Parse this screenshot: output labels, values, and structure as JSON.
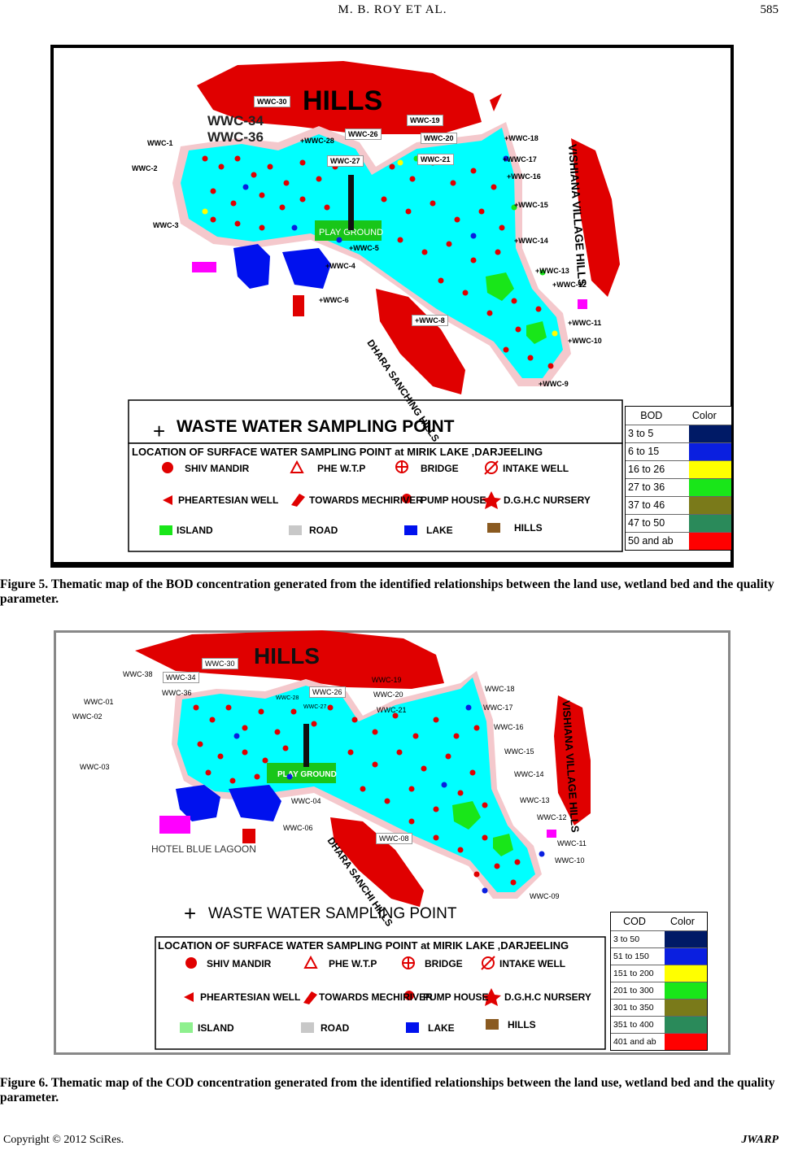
{
  "header": {
    "authors": "M. B. ROY   ET   AL.",
    "page": "585"
  },
  "figure5": {
    "labels": {
      "hills": "HILLS",
      "village": "VISHIANA VILLAGE HILLS",
      "dhara": "DHARA SANCHING HILLS",
      "playground": "PLAY GROUND",
      "wwc34": "WWC-34",
      "wwc36": "WWC-36",
      "wwc30": "WWC-30",
      "wwc19": "WWC-19",
      "wwc26": "WWC-26",
      "wwc20": "WWC-20",
      "wwc27": "WWC-27",
      "wwc21": "WWC-21",
      "wwc28": "+WWC-28",
      "wwc1": "WWC-1",
      "wwc2": "WWC-2",
      "wwc3": "WWC-3",
      "wwc18": "+WWC-18",
      "wwc17": "+WWC-17",
      "wwc16": "+WWC-16",
      "wwc15": "+WWC-15",
      "wwc14": "+WWC-14",
      "wwc13": "+WWC-13",
      "wwc12": "+WWC-12",
      "wwc11": "+WWC-11",
      "wwc10": "+WWC-10",
      "wwc9": "+WWC-9",
      "wwc8": "+WWC-8",
      "wwc6": "+WWC-6",
      "wwc5": "+WWC-5",
      "wwc4": "+WWC-4"
    },
    "waste_water_title": "WASTE WATER SAMPLING POINT",
    "location_title": "LOCATION OF SURFACE WATER SAMPLING POINT at MIRIK LAKE ,DARJEELING",
    "symbols": [
      "SHIV MANDIR",
      "PHE W.T.P",
      "BRIDGE",
      "INTAKE WELL",
      "PHEARTESIAN WELL",
      "TOWARDS MECHIRIVER",
      "PUMP HOUSE",
      "D.G.H.C NURSERY",
      "ISLAND",
      "ROAD",
      "LAKE",
      "HILLS"
    ],
    "legend": {
      "param": "BOD",
      "color_header": "Color",
      "rows": [
        {
          "label": "3 to 5",
          "color": "#001a66"
        },
        {
          "label": "6 to 15",
          "color": "#0a1fe0"
        },
        {
          "label": "16 to 26",
          "color": "#ffff00"
        },
        {
          "label": "27 to 36",
          "color": "#19e619"
        },
        {
          "label": "37 to 46",
          "color": "#7a7a1a"
        },
        {
          "label": "47 to 50",
          "color": "#2a8a5a"
        },
        {
          "label": "50 and ab",
          "color": "#ff0000"
        }
      ]
    },
    "caption": "Figure 5. Thematic map of the BOD concentration generated from the identified relationships between the land use, wetland bed and the quality parameter."
  },
  "figure6": {
    "labels": {
      "hills": "HILLS",
      "village": "VISHIANA VILLAGE HILLS",
      "dhara": "DHARA SANCHI HILLS",
      "playground": "PLAY GROUND",
      "hotel": "HOTEL BLUE LAGOON",
      "wwc38": "WWC-38",
      "wwc34": "WWC-34",
      "wwc30": "WWC-30",
      "wwc36": "WWC-36",
      "wwc28": "WWC-28",
      "wwc26": "WWC-26",
      "wwc27": "WWC-27",
      "wwc19": "WWC-19",
      "wwc20": "WWC-20",
      "wwc21": "WWC-21",
      "wwc18": "WWC-18",
      "wwc17": "WWC-17",
      "wwc16": "WWC-16",
      "wwc15": "WWC-15",
      "wwc14": "WWC-14",
      "wwc13": "WWC-13",
      "wwc12": "WWC-12",
      "wwc11": "WWC-11",
      "wwc10": "WWC-10",
      "wwc09": "WWC-09",
      "wwc08": "WWC-08",
      "wwc06": "WWC-06",
      "wwc04": "WWC-04",
      "wwc01": "WWC-01",
      "wwc02": "WWC-02",
      "wwc03": "WWC-03"
    },
    "waste_water_title": "WASTE WATER SAMPLING POINT",
    "location_title": "LOCATION OF SURFACE WATER SAMPLING POINT at MIRIK LAKE ,DARJEELING",
    "symbols": [
      "SHIV MANDIR",
      "PHE W.T.P",
      "BRIDGE",
      "INTAKE WELL",
      "PHEARTESIAN WELL",
      "TOWARDS MECHIRIVER",
      "PUMP HOUSE",
      "D.G.H.C NURSERY",
      "ISLAND",
      "ROAD",
      "LAKE",
      "HILLS"
    ],
    "legend": {
      "param": "COD",
      "color_header": "Color",
      "rows": [
        {
          "label": "3 to 50",
          "color": "#001a66"
        },
        {
          "label": "51 to 150",
          "color": "#0a1fe0"
        },
        {
          "label": "151 to 200",
          "color": "#ffff00"
        },
        {
          "label": "201 to 300",
          "color": "#19e619"
        },
        {
          "label": "301 to 350",
          "color": "#7a7a1a"
        },
        {
          "label": "351 to 400",
          "color": "#2a8a5a"
        },
        {
          "label": "401 and ab",
          "color": "#ff0000"
        }
      ]
    },
    "caption": "Figure 6. Thematic map of the COD concentration generated from the identified relationships between the land use, wetland bed and the quality parameter."
  },
  "footer": {
    "copyright": "Copyright © 2012 SciRes.",
    "journal": "JWARP"
  }
}
